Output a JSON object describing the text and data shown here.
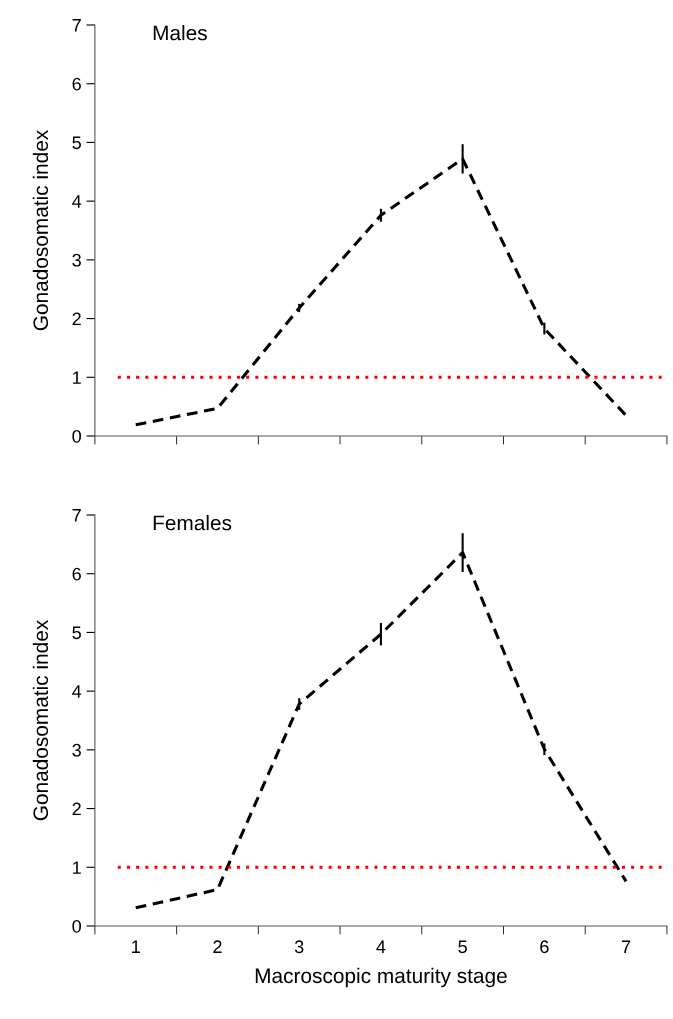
{
  "chart_data": [
    {
      "type": "line",
      "title": "Males",
      "ylabel": "Gonadosomatic index",
      "categories": [
        "1",
        "2",
        "3",
        "4",
        "5",
        "6",
        "7"
      ],
      "series": [
        {
          "color": "#000000",
          "values": [
            0.19,
            0.47,
            2.18,
            3.76,
            4.72,
            1.83,
            0.35
          ],
          "errors": [
            null,
            null,
            0.07,
            0.11,
            0.25,
            0.1,
            null
          ]
        }
      ],
      "ylim": [
        0,
        7
      ],
      "yticks": [
        0,
        1,
        2,
        3,
        4,
        5,
        6,
        7
      ],
      "tick_labels": "y",
      "line_style": "dashed",
      "marker": "none",
      "grid": false,
      "legend": false,
      "ref_lines": [
        {
          "axis": "y",
          "value": 1,
          "color": "#ff0000",
          "line_style": "dotted"
        }
      ]
    },
    {
      "type": "line",
      "title": "Females",
      "ylabel": "Gonadosomatic index",
      "xlabel": "Macroscopic maturity stage",
      "categories": [
        "1",
        "2",
        "3",
        "4",
        "5",
        "6",
        "7"
      ],
      "series": [
        {
          "color": "#000000",
          "values": [
            0.31,
            0.62,
            3.78,
            4.97,
            6.36,
            3.01,
            0.76
          ],
          "errors": [
            null,
            null,
            0.1,
            0.19,
            0.33,
            0.1,
            null
          ]
        }
      ],
      "ylim": [
        0,
        7
      ],
      "yticks": [
        0,
        1,
        2,
        3,
        4,
        5,
        6,
        7
      ],
      "line_style": "dashed",
      "marker": "none",
      "grid": false,
      "legend": false,
      "ref_lines": [
        {
          "axis": "y",
          "value": 1,
          "color": "#ff0000",
          "line_style": "dotted"
        }
      ]
    }
  ]
}
